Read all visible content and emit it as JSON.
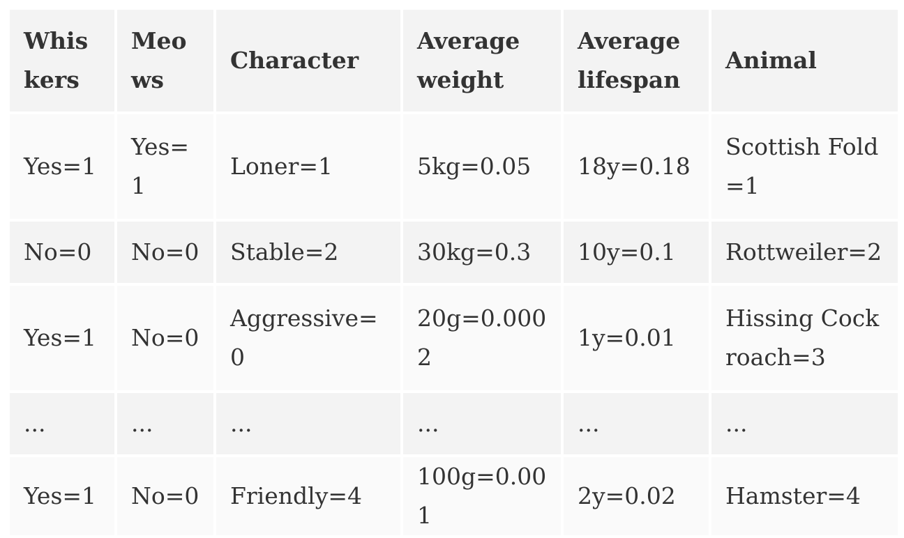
{
  "table": {
    "headers": [
      "Whiskers",
      "Meows",
      "Character",
      "Average weight",
      "Average lifespan",
      "Animal"
    ],
    "rows": [
      [
        "Yes=1",
        "Yes=1",
        "Loner=1",
        "5kg=0.05",
        "18y=0.18",
        "Scottish Fold=1"
      ],
      [
        "No=0",
        "No=0",
        "Stable=2",
        "30kg=0.3",
        "10y=0.1",
        "Rottweiler=2"
      ],
      [
        "Yes=1",
        "No=0",
        "Aggressive=0",
        "20g=0.0002",
        "1y=0.01",
        "Hissing Cockroach=3"
      ],
      [
        "...",
        "...",
        "...",
        "...",
        "...",
        "..."
      ],
      [
        "Yes=1",
        "No=0",
        "Friendly=4",
        "100g=0.001",
        "2y=0.02",
        "Hamster=4"
      ]
    ]
  }
}
